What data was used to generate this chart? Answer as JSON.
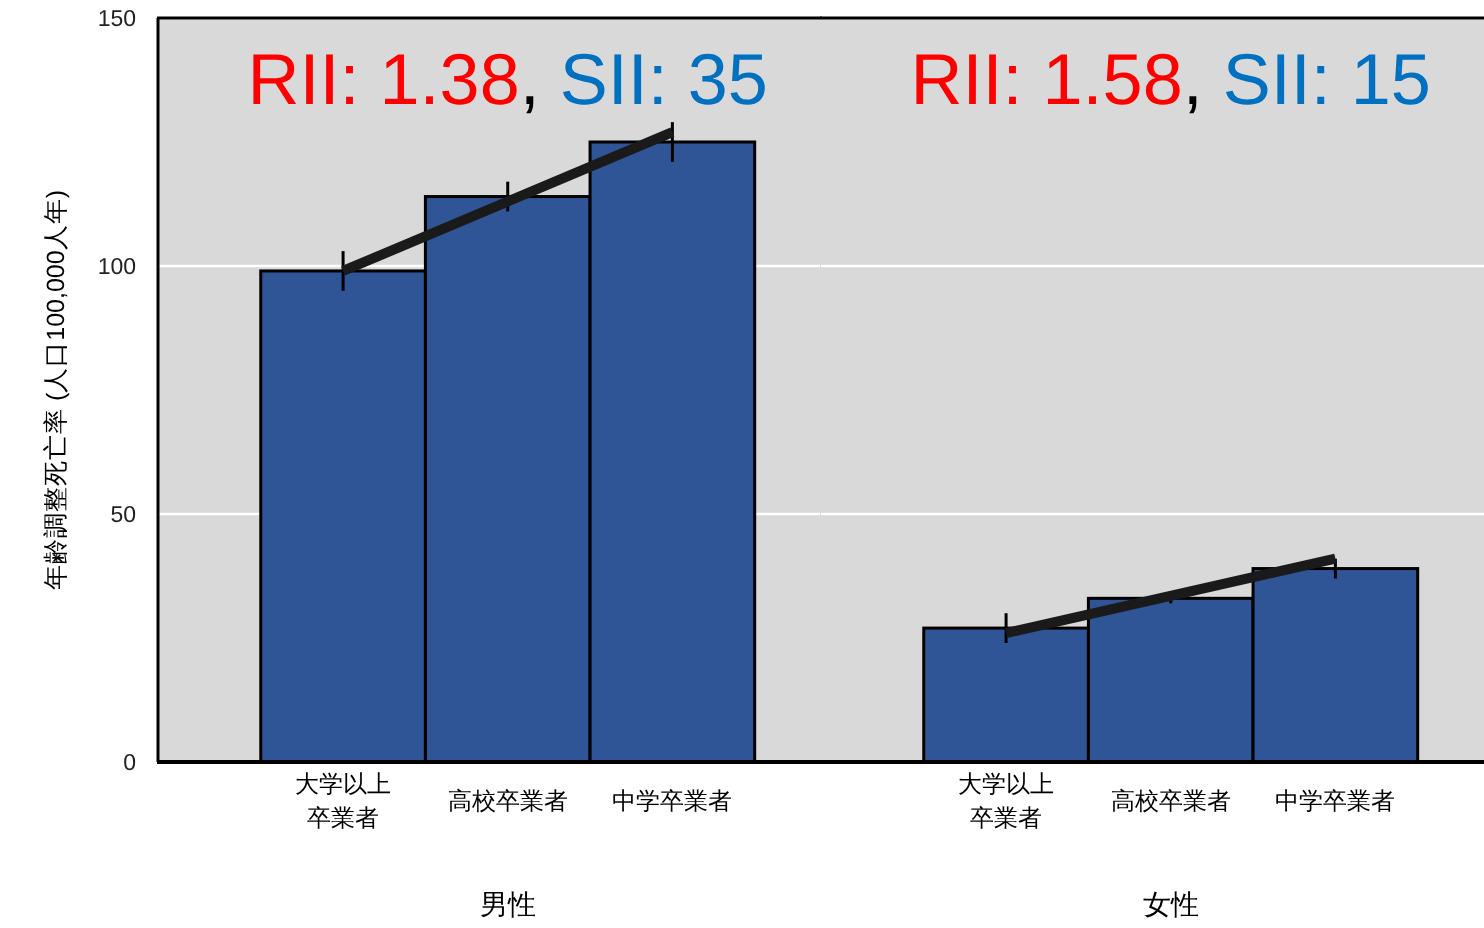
{
  "chart_data": [
    {
      "type": "bar",
      "ylabel": "年齢調整死亡率 (人口100,000人年)",
      "xlabel": "男性",
      "categories": [
        "大学以上卒業者",
        "高校卒業者",
        "中学卒業者"
      ],
      "series": [
        {
          "color": "#2f5597",
          "values": [
            99,
            114,
            125
          ],
          "errors": [
            4,
            3,
            4
          ]
        },
        {
          "type": "line",
          "color": "#1a1a1a",
          "x": [
            "大学以上卒業者",
            "中学卒業者"
          ],
          "values": [
            99,
            127
          ]
        }
      ],
      "ylim": [
        0,
        150
      ],
      "yticks": [
        0,
        50,
        100,
        150
      ],
      "grid": "y",
      "annotations": [
        "RII: 1.38, SII: 35"
      ]
    },
    {
      "type": "bar",
      "xlabel": "女性",
      "categories": [
        "大学以上卒業者",
        "高校卒業者",
        "中学卒業者"
      ],
      "series": [
        {
          "color": "#2f5597",
          "values": [
            27,
            33,
            39
          ],
          "errors": [
            3,
            1,
            2
          ]
        },
        {
          "type": "line",
          "color": "#1a1a1a",
          "x": [
            "大学以上卒業者",
            "中学卒業者"
          ],
          "values": [
            26,
            41
          ]
        }
      ],
      "ylim": [
        0,
        150
      ],
      "yticks": [
        0,
        50,
        100,
        150
      ],
      "grid": "y",
      "tick_labels": "x",
      "annotations": [
        "RII: 1.58, SII: 15"
      ]
    }
  ]
}
